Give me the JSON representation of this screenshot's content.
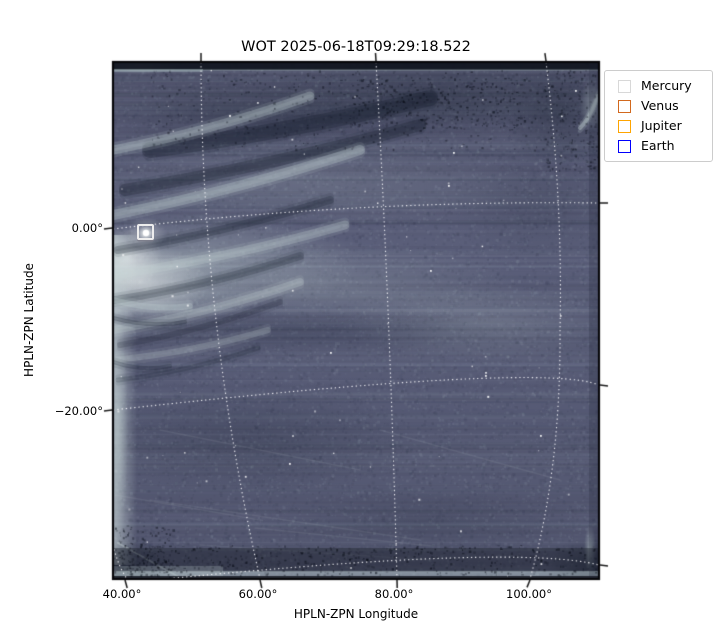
{
  "figure": {
    "title": "WOT 2025-06-18T09:29:18.522",
    "xlabel": "HPLN-ZPN Longitude",
    "ylabel": "HPLN-ZPN Latitude",
    "x_tick_labels": [
      "40.00°",
      "60.00°",
      "80.00°",
      "100.00°"
    ],
    "y_tick_labels": [
      "0.00°",
      "−20.00°"
    ]
  },
  "legend": {
    "items": [
      {
        "label": "Mercury",
        "color": "#d8d8d8"
      },
      {
        "label": "Venus",
        "color": "#d2691e"
      },
      {
        "label": "Jupiter",
        "color": "#ffa500"
      },
      {
        "label": "Earth",
        "color": "#0000ff"
      }
    ]
  },
  "overlay": {
    "mercury_marker": {
      "name": "Mercury",
      "symbol": "square-outline",
      "color": "#ededed"
    }
  },
  "chart_data": {
    "type": "heatmap",
    "title": "WOT 2025-06-18T09:29:18.522",
    "xlabel": "HPLN-ZPN Longitude",
    "ylabel": "HPLN-ZPN Latitude",
    "x_tick_values_deg": [
      40,
      60,
      80,
      100
    ],
    "y_tick_values_deg": [
      0,
      -20
    ],
    "xlim_deg": [
      38.2,
      110.2
    ],
    "ylim_deg": [
      -38.5,
      18.0
    ],
    "grid": "dotted white celestial graticule every 20 degrees (curved ZPN projection)",
    "graticule_longitudes_deg": [
      40,
      60,
      80,
      100
    ],
    "graticule_latitudes_deg": [
      0,
      -20,
      -40
    ],
    "image_description": "running-difference heliospheric imager frame; dark slate-blue noisy field, fan of bright/dark coronal streaks radiating from the Sun-ward (left) edge, bright blob at Mercury, horizontal bright band across mid-field, dark speckled bands along top and bottom edges",
    "legend_position": "upper right, outside axes",
    "series": [
      {
        "name": "Mercury",
        "marker": "square-outline",
        "color": "#d8d8d8",
        "points": [
          {
            "lon_deg": 43.2,
            "lat_deg": -0.7
          }
        ]
      },
      {
        "name": "Venus",
        "marker": "square-outline",
        "color": "#d2691e",
        "points": []
      },
      {
        "name": "Jupiter",
        "marker": "square-outline",
        "color": "#ffa500",
        "points": []
      },
      {
        "name": "Earth",
        "marker": "square-outline",
        "color": "#0000ff",
        "points": []
      }
    ]
  }
}
